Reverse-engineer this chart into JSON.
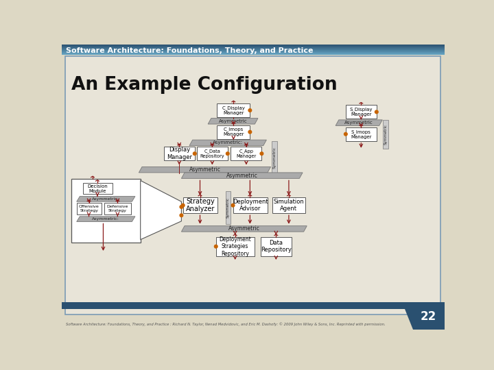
{
  "title": "Software Architecture: Foundations, Theory, and Practice",
  "slide_title": "An Example Configuration",
  "slide_number": "22",
  "footer": "Software Architecture: Foundations, Theory, and Practice : Richard N. Taylor, Nenad Medvidovic, and Eric M. Dashofy: © 2009 John Wiley & Sons, Inc. Reprinted with permission.",
  "bg_color": "#ddd8c4",
  "bg_inner": "#e8e4d8",
  "header_dark": "#2a5070",
  "header_mid": "#3d7ba0",
  "header_light": "#6aaac8",
  "box_fill": "#ffffff",
  "box_border": "#555555",
  "arrow_color": "#8b1a1a",
  "dot_color": "#c86400",
  "asym_fill": "#aaaaaa",
  "asym_border": "#777777",
  "sym_fill": "#cccccc",
  "sym_border": "#888888"
}
